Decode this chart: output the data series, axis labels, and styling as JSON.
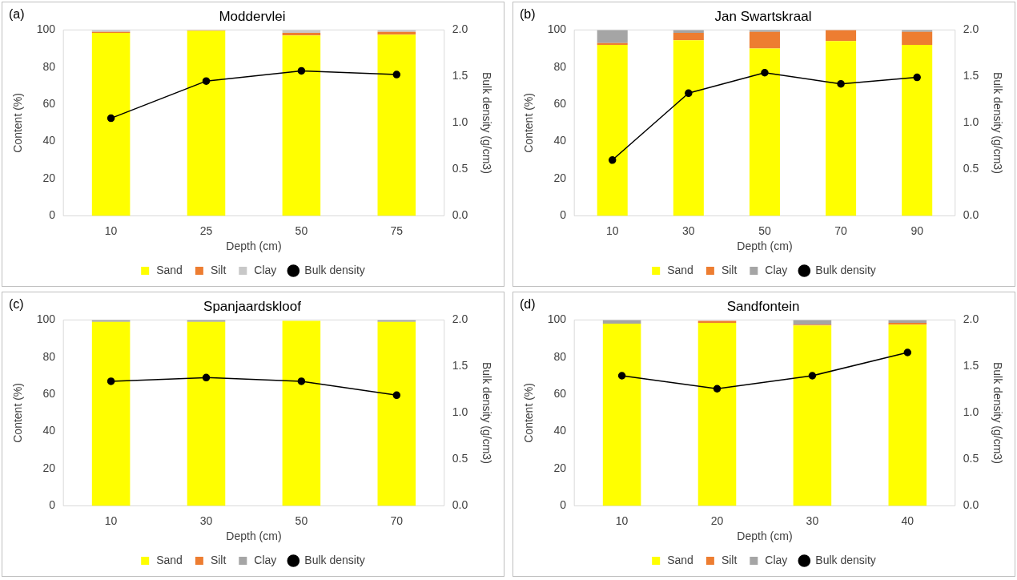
{
  "chart_data": [
    {
      "type": "bar",
      "title": "Moddervlei",
      "xlabel": "Depth (cm)",
      "ylabel": "Content (%)",
      "y2label": "Bulk density (g/cm3)",
      "annotations": [
        "(a)"
      ],
      "categories": [
        "10",
        "25",
        "50",
        "75"
      ],
      "stacked": true,
      "legend": "bottom",
      "marker": "circle",
      "ylim": [
        0,
        100
      ],
      "yticks": [
        0,
        20,
        40,
        60,
        80,
        100
      ],
      "y2lim": [
        0,
        2
      ],
      "y2ticks": [
        {
          "value": 0,
          "label": "0.0"
        },
        {
          "value": 0.5,
          "label": "0.5"
        },
        {
          "value": 1,
          "label": "1.0"
        },
        {
          "value": 1.5,
          "label": "1.5"
        },
        {
          "value": 2,
          "label": "2.0"
        }
      ],
      "series": [
        {
          "name": "Sand",
          "color": "#ffff00",
          "values": [
            98.5,
            99.5,
            97,
            97.5
          ]
        },
        {
          "name": "Silt",
          "color": "#ed7d31",
          "values": [
            0.5,
            0.3,
            1.5,
            1.5
          ]
        },
        {
          "name": "Clay",
          "color": "#c8c8c8",
          "values": [
            1,
            0.2,
            1.5,
            1
          ]
        },
        {
          "name": "Bulk density",
          "type": "line",
          "axis": "y2",
          "color": "#000000",
          "values": [
            1.05,
            1.45,
            1.56,
            1.52
          ]
        }
      ]
    },
    {
      "type": "bar",
      "title": "Jan Swartskraal",
      "xlabel": "Depth (cm)",
      "ylabel": "Content (%)",
      "y2label": "Bulk density (g/cm3)",
      "annotations": [
        "(b)"
      ],
      "categories": [
        "10",
        "30",
        "50",
        "70",
        "90"
      ],
      "stacked": true,
      "legend": "bottom",
      "marker": "circle",
      "ylim": [
        0,
        100
      ],
      "yticks": [
        0,
        20,
        40,
        60,
        80,
        100
      ],
      "y2lim": [
        0,
        2
      ],
      "y2ticks": [
        {
          "value": 0,
          "label": "0.0"
        },
        {
          "value": 0.5,
          "label": "0.5"
        },
        {
          "value": 1,
          "label": "1.0"
        },
        {
          "value": 1.5,
          "label": "1.5"
        },
        {
          "value": 2,
          "label": "2.0"
        }
      ],
      "series": [
        {
          "name": "Sand",
          "color": "#ffff00",
          "values": [
            92,
            94.5,
            90,
            94,
            92
          ]
        },
        {
          "name": "Silt",
          "color": "#ed7d31",
          "values": [
            1,
            4,
            9,
            6,
            7
          ]
        },
        {
          "name": "Clay",
          "color": "#a5a5a5",
          "values": [
            7,
            1.5,
            1,
            0,
            1
          ]
        },
        {
          "name": "Bulk density",
          "type": "line",
          "axis": "y2",
          "color": "#000000",
          "values": [
            0.6,
            1.32,
            1.54,
            1.42,
            1.49
          ]
        }
      ]
    },
    {
      "type": "bar",
      "title": "Spanjaardskloof",
      "xlabel": "Depth (cm)",
      "ylabel": "Content (%)",
      "y2label": "Bulk density (g/cm3)",
      "annotations": [
        "(c)"
      ],
      "categories": [
        "10",
        "30",
        "50",
        "70"
      ],
      "stacked": true,
      "legend": "bottom",
      "marker": "circle",
      "ylim": [
        0,
        100
      ],
      "yticks": [
        0,
        20,
        40,
        60,
        80,
        100
      ],
      "y2lim": [
        0,
        2
      ],
      "y2ticks": [
        {
          "value": 0,
          "label": "0.0"
        },
        {
          "value": 0.5,
          "label": "0.5"
        },
        {
          "value": 1,
          "label": "1.0"
        },
        {
          "value": 1.5,
          "label": "1.5"
        },
        {
          "value": 2,
          "label": "2.0"
        }
      ],
      "series": [
        {
          "name": "Sand",
          "color": "#ffff00",
          "values": [
            99,
            99,
            99.5,
            99
          ]
        },
        {
          "name": "Silt",
          "color": "#ed7d31",
          "values": [
            0,
            0,
            0,
            0
          ]
        },
        {
          "name": "Clay",
          "color": "#a5a5a5",
          "values": [
            1,
            1,
            null,
            1
          ]
        },
        {
          "name": "Bulk density",
          "type": "line",
          "axis": "y2",
          "color": "#000000",
          "values": [
            1.34,
            1.38,
            1.34,
            1.19
          ]
        }
      ]
    },
    {
      "type": "bar",
      "title": "Sandfontein",
      "xlabel": "Depth (cm)",
      "ylabel": "Content (%)",
      "y2label": "Bulk density (g/cm3)",
      "annotations": [
        "(d)"
      ],
      "categories": [
        "10",
        "20",
        "30",
        "40"
      ],
      "stacked": true,
      "legend": "bottom",
      "marker": "circle",
      "ylim": [
        0,
        100
      ],
      "yticks": [
        0,
        20,
        40,
        60,
        80,
        100
      ],
      "y2lim": [
        0,
        2
      ],
      "y2ticks": [
        {
          "value": 0,
          "label": "0.0"
        },
        {
          "value": 0.5,
          "label": "0.5"
        },
        {
          "value": 1,
          "label": "1.0"
        },
        {
          "value": 1.5,
          "label": "1.5"
        },
        {
          "value": 2,
          "label": "2.0"
        }
      ],
      "series": [
        {
          "name": "Sand",
          "color": "#ffff00",
          "values": [
            98,
            98.5,
            97,
            97.5
          ]
        },
        {
          "name": "Silt",
          "color": "#ed7d31",
          "values": [
            0,
            1,
            0.5,
            1
          ]
        },
        {
          "name": "Clay",
          "color": "#a5a5a5",
          "values": [
            2,
            null,
            2.5,
            1.5
          ]
        },
        {
          "name": "Bulk density",
          "type": "line",
          "axis": "y2",
          "color": "#000000",
          "values": [
            1.4,
            1.26,
            1.4,
            1.65
          ]
        }
      ]
    }
  ]
}
